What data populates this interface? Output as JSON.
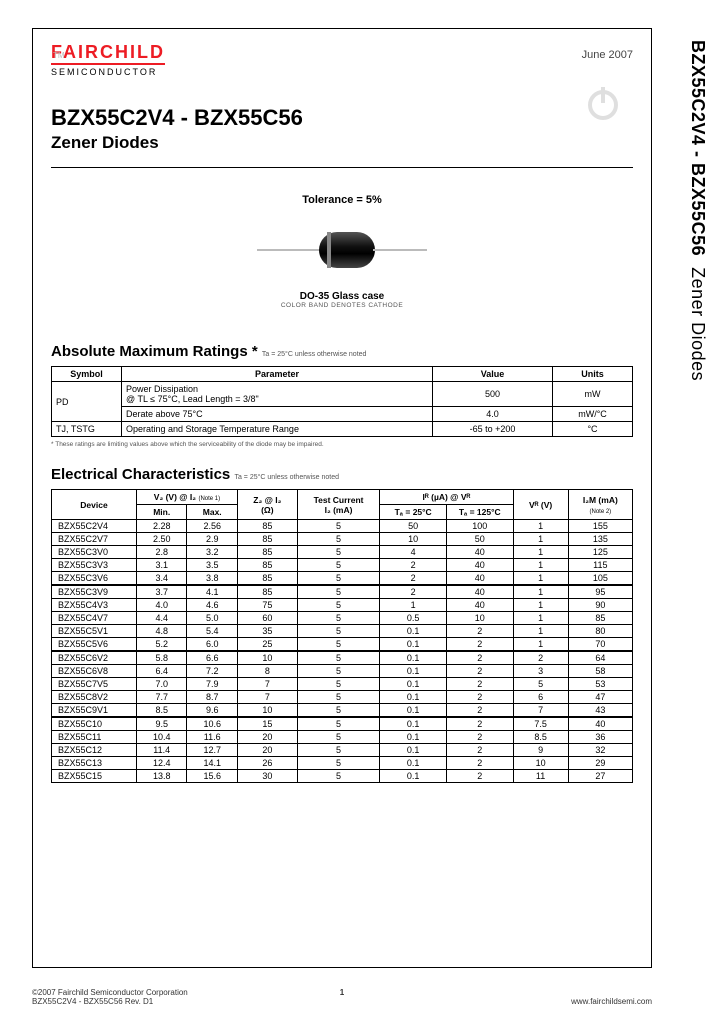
{
  "side": {
    "part_range": "BZX55C2V4 - BZX55C56",
    "family": "Zener Diodes"
  },
  "header": {
    "logo_top": "FAIRCHILD",
    "logo_sub": "SEMICONDUCTOR",
    "date": "June 2007",
    "title": "BZX55C2V4 - BZX55C56",
    "subtitle": "Zener Diodes"
  },
  "figure": {
    "tolerance": "Tolerance = 5%",
    "case": "DO-35 Glass case",
    "band_note": "COLOR BAND DENOTES CATHODE"
  },
  "ratings": {
    "title": "Absolute Maximum Ratings *",
    "note": "Ta = 25°C unless otherwise noted",
    "columns": [
      "Symbol",
      "Parameter",
      "Value",
      "Units"
    ],
    "rows": [
      {
        "symbol": "PD",
        "param": "Power Dissipation\n@ TL ≤ 75°C, Lead Length = 3/8\"",
        "value": "500",
        "units": "mW"
      },
      {
        "symbol": "",
        "param": "Derate above 75°C",
        "value": "4.0",
        "units": "mW/°C"
      },
      {
        "symbol": "TJ, TSTG",
        "param": "Operating and Storage Temperature Range",
        "value": "-65 to +200",
        "units": "°C"
      }
    ],
    "footnote": "* These ratings are limiting values above which the serviceability of the diode may be impaired."
  },
  "elec": {
    "title": "Electrical Characteristics",
    "note": "Ta = 25°C unless otherwise noted",
    "header": {
      "device": "Device",
      "vz": "V₂ (V) @ I₂",
      "vz_note": "(Note 1)",
      "min": "Min.",
      "max": "Max.",
      "zz": "Z₂ @ I₂\n(Ω)",
      "test": "Test Current\nI₂ (mA)",
      "ir": "Iᴿ (µA) @ Vᴿ",
      "ta25": "Tₐ = 25°C",
      "ta125": "Tₐ = 125°C",
      "vr": "Vᴿ (V)",
      "izm": "I₂M (mA)",
      "izm_note": "(Note 2)"
    },
    "groups": [
      [
        [
          "BZX55C2V4",
          "2.28",
          "2.56",
          "85",
          "5",
          "50",
          "100",
          "1",
          "155"
        ],
        [
          "BZX55C2V7",
          "2.50",
          "2.9",
          "85",
          "5",
          "10",
          "50",
          "1",
          "135"
        ],
        [
          "BZX55C3V0",
          "2.8",
          "3.2",
          "85",
          "5",
          "4",
          "40",
          "1",
          "125"
        ],
        [
          "BZX55C3V3",
          "3.1",
          "3.5",
          "85",
          "5",
          "2",
          "40",
          "1",
          "115"
        ],
        [
          "BZX55C3V6",
          "3.4",
          "3.8",
          "85",
          "5",
          "2",
          "40",
          "1",
          "105"
        ]
      ],
      [
        [
          "BZX55C3V9",
          "3.7",
          "4.1",
          "85",
          "5",
          "2",
          "40",
          "1",
          "95"
        ],
        [
          "BZX55C4V3",
          "4.0",
          "4.6",
          "75",
          "5",
          "1",
          "40",
          "1",
          "90"
        ],
        [
          "BZX55C4V7",
          "4.4",
          "5.0",
          "60",
          "5",
          "0.5",
          "10",
          "1",
          "85"
        ],
        [
          "BZX55C5V1",
          "4.8",
          "5.4",
          "35",
          "5",
          "0.1",
          "2",
          "1",
          "80"
        ],
        [
          "BZX55C5V6",
          "5.2",
          "6.0",
          "25",
          "5",
          "0.1",
          "2",
          "1",
          "70"
        ]
      ],
      [
        [
          "BZX55C6V2",
          "5.8",
          "6.6",
          "10",
          "5",
          "0.1",
          "2",
          "2",
          "64"
        ],
        [
          "BZX55C6V8",
          "6.4",
          "7.2",
          "8",
          "5",
          "0.1",
          "2",
          "3",
          "58"
        ],
        [
          "BZX55C7V5",
          "7.0",
          "7.9",
          "7",
          "5",
          "0.1",
          "2",
          "5",
          "53"
        ],
        [
          "BZX55C8V2",
          "7.7",
          "8.7",
          "7",
          "5",
          "0.1",
          "2",
          "6",
          "47"
        ],
        [
          "BZX55C9V1",
          "8.5",
          "9.6",
          "10",
          "5",
          "0.1",
          "2",
          "7",
          "43"
        ]
      ],
      [
        [
          "BZX55C10",
          "9.5",
          "10.6",
          "15",
          "5",
          "0.1",
          "2",
          "7.5",
          "40"
        ],
        [
          "BZX55C11",
          "10.4",
          "11.6",
          "20",
          "5",
          "0.1",
          "2",
          "8.5",
          "36"
        ],
        [
          "BZX55C12",
          "11.4",
          "12.7",
          "20",
          "5",
          "0.1",
          "2",
          "9",
          "32"
        ],
        [
          "BZX55C13",
          "12.4",
          "14.1",
          "26",
          "5",
          "0.1",
          "2",
          "10",
          "29"
        ],
        [
          "BZX55C15",
          "13.8",
          "15.6",
          "30",
          "5",
          "0.1",
          "2",
          "11",
          "27"
        ]
      ]
    ]
  },
  "footer": {
    "left1": "©2007 Fairchild Semiconductor Corporation",
    "left2": "BZX55C2V4 - BZX55C56 Rev. D1",
    "page": "1",
    "right": "www.fairchildsemi.com"
  }
}
